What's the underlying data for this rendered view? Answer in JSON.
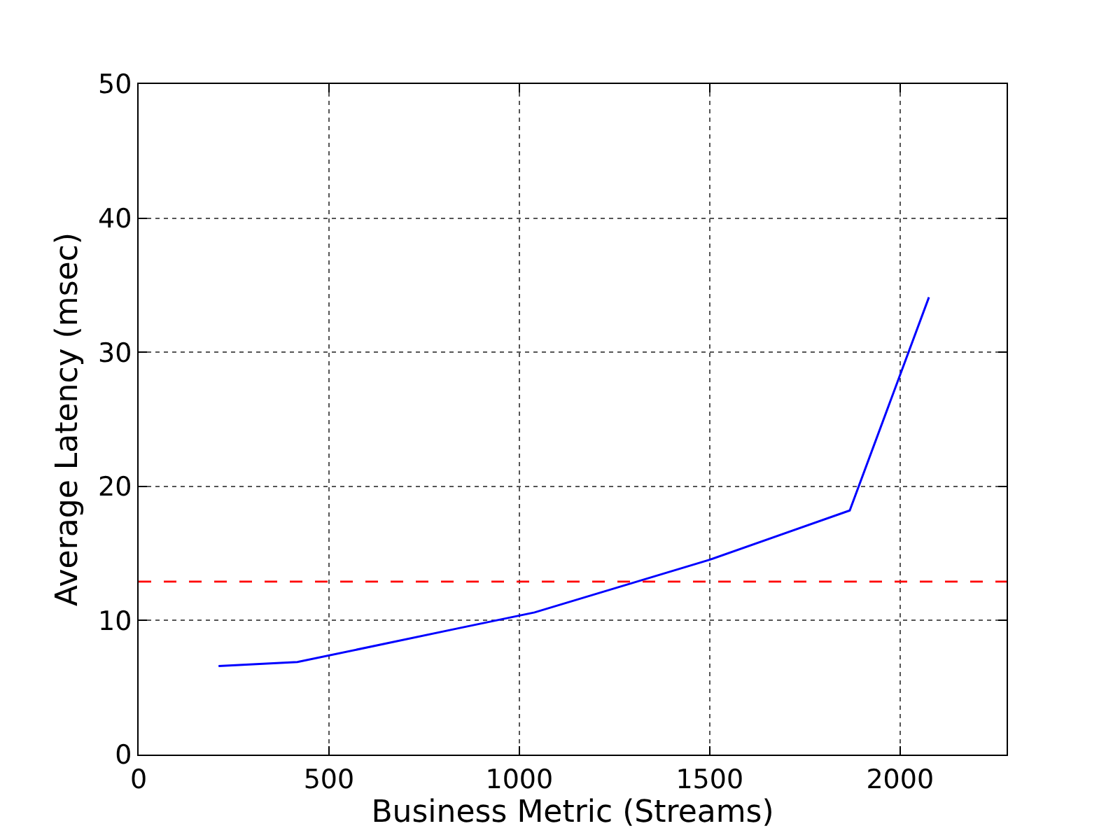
{
  "chart_data": {
    "type": "line",
    "xlabel": "Business Metric (Streams)",
    "ylabel": "Average Latency (msec)",
    "x": [
      210,
      417,
      837,
      1040,
      1497,
      1868,
      2076
    ],
    "series": [
      {
        "color": "#0000ff",
        "values": [
          6.6,
          6.9,
          9.4,
          10.6,
          14.5,
          18.2,
          34.1
        ]
      }
    ],
    "xlim": [
      0,
      2280
    ],
    "xticks": [
      0,
      500,
      1000,
      1500,
      2000
    ],
    "ylim": [
      0,
      50
    ],
    "yticks": [
      0,
      10,
      20,
      30,
      40,
      50
    ],
    "grid": true,
    "legend": false,
    "marker": "none",
    "line_style": "solid",
    "ref_lines": [
      {
        "axis": "y",
        "value": 12.9,
        "color": "#ff0000",
        "line_style": "dashed"
      }
    ]
  }
}
